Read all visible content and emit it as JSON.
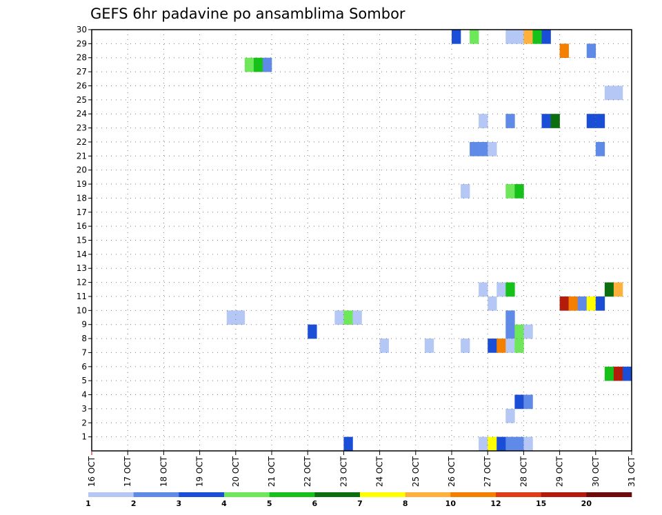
{
  "chart_data": {
    "type": "heatmap",
    "title": "GEFS 6hr padavine po ansamblima Sombor",
    "x_tick_labels": [
      "16 OCT",
      "17 OCT",
      "18 OCT",
      "19 OCT",
      "20 OCT",
      "21 OCT",
      "22 OCT",
      "23 OCT",
      "24 OCT",
      "25 OCT",
      "26 OCT",
      "27 OCT",
      "28 OCT",
      "29 OCT",
      "30 OCT",
      "31 OCT"
    ],
    "xlim": [
      0,
      60
    ],
    "x_unit": "6-hour steps from 16 OCT 00Z",
    "y_tick_labels": [
      "1",
      "2",
      "3",
      "4",
      "5",
      "6",
      "7",
      "8",
      "9",
      "10",
      "11",
      "12",
      "13",
      "14",
      "15",
      "16",
      "17",
      "18",
      "19",
      "20",
      "21",
      "22",
      "23",
      "24",
      "25",
      "26",
      "27",
      "28",
      "29",
      "30"
    ],
    "ylim": [
      0,
      30
    ],
    "grid": true,
    "colorbar": {
      "colors": [
        "#b4c7f5",
        "#5f8ae8",
        "#1a4ed6",
        "#6ee85a",
        "#16c21a",
        "#0d6e10",
        "#ffff00",
        "#ffb13c",
        "#f58000",
        "#e03c18",
        "#b31b0a",
        "#6e0a0a"
      ],
      "labels": [
        "1",
        "2",
        "3",
        "4",
        "5",
        "6",
        "7",
        "8",
        "10",
        "12",
        "15",
        "20"
      ]
    },
    "cells_note": "each cell: [x step, member, colour class 0-11]",
    "cells": [
      [
        40,
        29,
        2
      ],
      [
        42,
        29,
        3
      ],
      [
        46,
        29,
        0
      ],
      [
        47,
        29,
        0
      ],
      [
        48,
        29,
        7
      ],
      [
        49,
        29,
        4
      ],
      [
        50,
        29,
        2
      ],
      [
        52,
        28,
        8
      ],
      [
        55,
        28,
        1
      ],
      [
        17,
        27,
        3
      ],
      [
        18,
        27,
        4
      ],
      [
        19,
        27,
        1
      ],
      [
        57,
        25,
        0
      ],
      [
        58,
        25,
        0
      ],
      [
        43,
        23,
        0
      ],
      [
        46,
        23,
        1
      ],
      [
        50,
        23,
        2
      ],
      [
        51,
        23,
        5
      ],
      [
        55,
        23,
        2
      ],
      [
        56,
        23,
        2
      ],
      [
        42,
        21,
        1
      ],
      [
        43,
        21,
        1
      ],
      [
        44,
        21,
        0
      ],
      [
        56,
        21,
        1
      ],
      [
        41,
        18,
        0
      ],
      [
        46,
        18,
        3
      ],
      [
        47,
        18,
        4
      ],
      [
        43,
        11,
        0
      ],
      [
        45,
        11,
        0
      ],
      [
        46,
        11,
        4
      ],
      [
        57,
        11,
        5
      ],
      [
        58,
        11,
        7
      ],
      [
        44,
        10,
        0
      ],
      [
        52,
        10,
        10
      ],
      [
        53,
        10,
        8
      ],
      [
        54,
        10,
        1
      ],
      [
        55,
        10,
        6
      ],
      [
        56,
        10,
        2
      ],
      [
        15,
        9,
        0
      ],
      [
        16,
        9,
        0
      ],
      [
        27,
        9,
        0
      ],
      [
        28,
        9,
        3
      ],
      [
        29,
        9,
        0
      ],
      [
        46,
        9,
        1
      ],
      [
        24,
        8,
        2
      ],
      [
        46,
        8,
        1
      ],
      [
        47,
        8,
        3
      ],
      [
        48,
        8,
        0
      ],
      [
        32,
        7,
        0
      ],
      [
        37,
        7,
        0
      ],
      [
        41,
        7,
        0
      ],
      [
        44,
        7,
        2
      ],
      [
        45,
        7,
        8
      ],
      [
        46,
        7,
        0
      ],
      [
        47,
        7,
        3
      ],
      [
        57,
        5,
        4
      ],
      [
        58,
        5,
        10
      ],
      [
        59,
        5,
        2
      ],
      [
        47,
        3,
        2
      ],
      [
        48,
        3,
        1
      ],
      [
        46,
        2,
        0
      ],
      [
        28,
        0,
        2
      ],
      [
        43,
        0,
        0
      ],
      [
        44,
        0,
        6
      ],
      [
        45,
        0,
        2
      ],
      [
        46,
        0,
        1
      ],
      [
        47,
        0,
        1
      ],
      [
        48,
        0,
        0
      ]
    ]
  }
}
